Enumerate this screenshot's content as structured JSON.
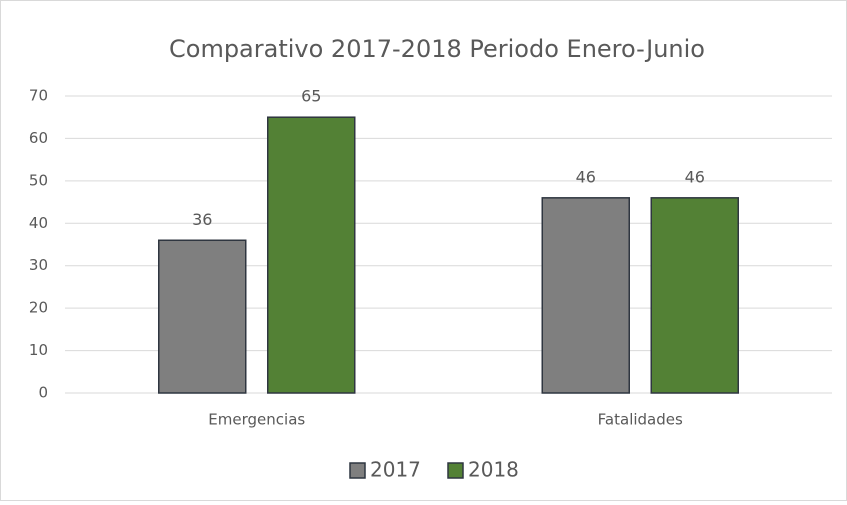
{
  "chart_data": {
    "type": "bar",
    "title": "Comparativo 2017-2018 Periodo Enero-Junio",
    "categories": [
      "Emergencias",
      "Fatalidades"
    ],
    "series": [
      {
        "name": "2017",
        "color": "#7f7f7f",
        "values": [
          36,
          46
        ]
      },
      {
        "name": "2018",
        "color": "#538135",
        "values": [
          65,
          46
        ]
      }
    ],
    "ylim": [
      0,
      70
    ],
    "yticks": [
      0,
      10,
      20,
      30,
      40,
      50,
      60,
      70
    ],
    "grid": true,
    "legend": "bottom"
  }
}
